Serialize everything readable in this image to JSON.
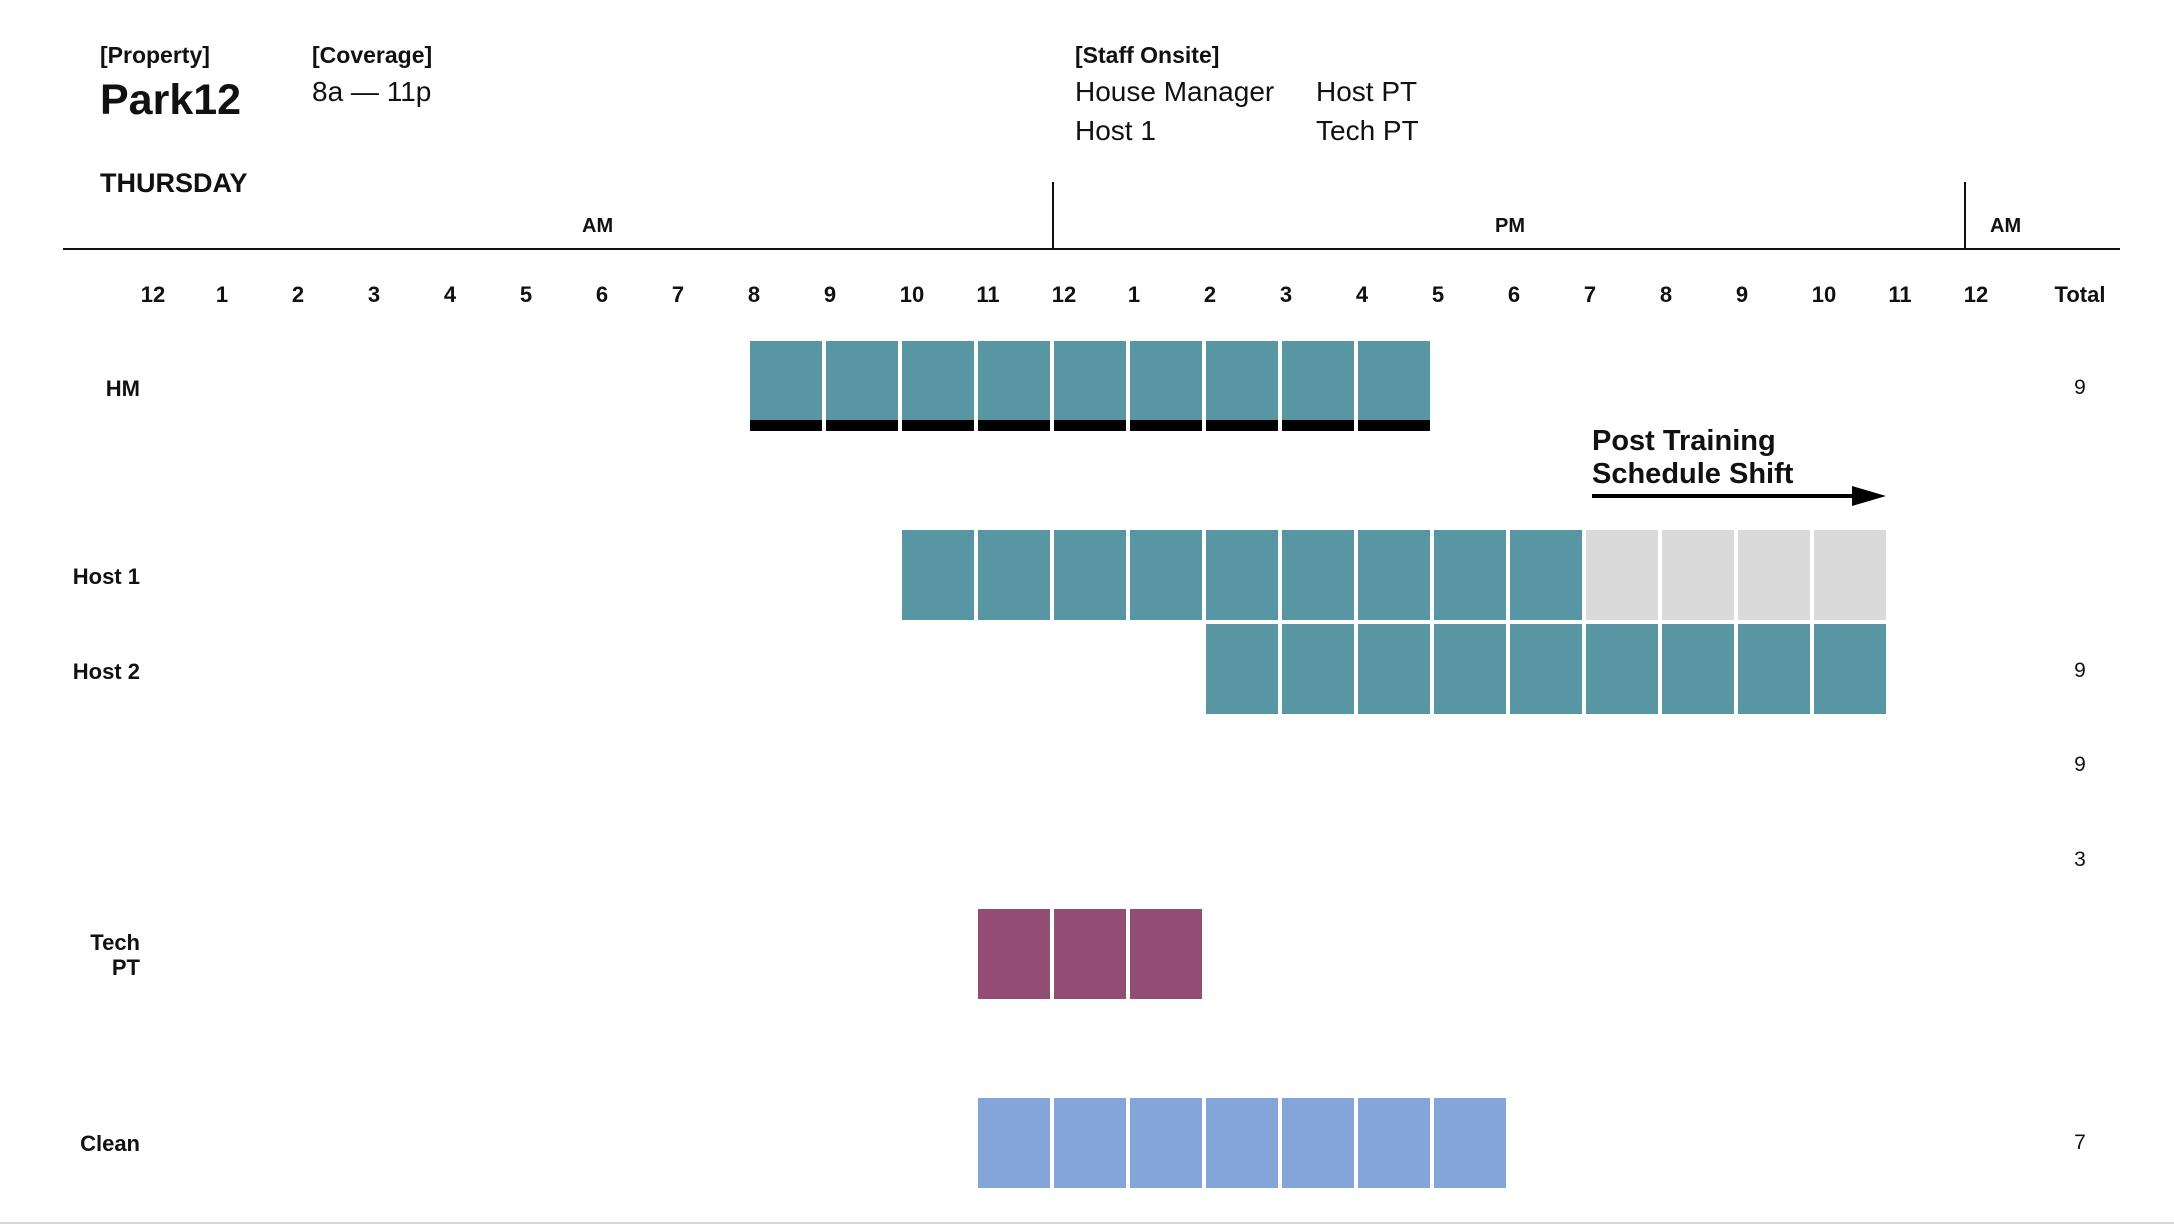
{
  "header": {
    "property_label": "[Property]",
    "property_name": "Park12",
    "coverage_label": "[Coverage]",
    "coverage_value": "8a — 11p",
    "staff_label": "[Staff Onsite]",
    "staff": [
      "House Manager",
      "Host PT",
      "Host 1",
      "Tech PT"
    ]
  },
  "day": "THURSDAY",
  "periods": [
    "AM",
    "PM",
    "AM"
  ],
  "hours": [
    "12",
    "1",
    "2",
    "3",
    "4",
    "5",
    "6",
    "7",
    "8",
    "9",
    "10",
    "11",
    "12",
    "1",
    "2",
    "3",
    "4",
    "5",
    "6",
    "7",
    "8",
    "9",
    "10",
    "11",
    "12"
  ],
  "total_header": "Total",
  "rows": [
    {
      "label": "HM",
      "start_hour": 8,
      "end_hour": 17,
      "style": "teal-underline"
    },
    {
      "label": "Host 1",
      "start_hour": 10,
      "end_hour": 19,
      "extended_end_hour": 23,
      "style": "teal"
    },
    {
      "label": "Host 2",
      "start_hour": 14,
      "end_hour": 23,
      "style": "teal"
    },
    {
      "label": "Tech\nPT",
      "start_hour": 11,
      "end_hour": 14,
      "style": "purple"
    },
    {
      "label": "Clean",
      "start_hour": 11,
      "end_hour": 18,
      "style": "blue"
    }
  ],
  "totals": [
    "9",
    "9",
    "9",
    "3",
    "7"
  ],
  "annotation": {
    "line1": "Post Training",
    "line2": "Schedule Shift"
  },
  "colors": {
    "teal": "#5796a2",
    "gray": "#dadada",
    "purple": "#934d75",
    "blue": "#84a5d8",
    "underline": "#000000"
  }
}
